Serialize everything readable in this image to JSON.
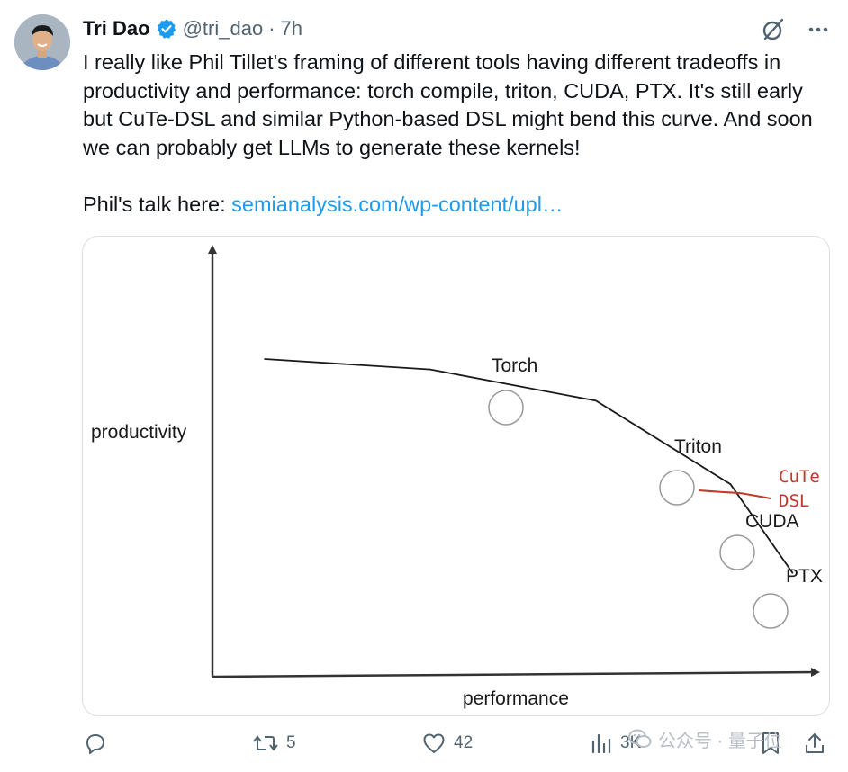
{
  "author": {
    "name": "Tri Dao",
    "handle": "@tri_dao",
    "separator": "·",
    "time": "7h"
  },
  "tweet": {
    "paragraph1": "I really like Phil Tillet's framing of different tools having different tradeoffs in productivity and performance: torch compile, triton, CUDA, PTX. It's still early but CuTe-DSL and similar Python-based DSL might bend this curve. And soon we can probably get LLMs to generate these kernels!",
    "link_prefix": "Phil's talk here: ",
    "link_text": "semianalysis.com/wp-content/upl…"
  },
  "chart_data": {
    "type": "line",
    "xlabel": "performance",
    "ylabel": "productivity",
    "x": [
      0,
      1.6,
      3.2,
      4.5,
      5.1
    ],
    "series": [
      {
        "values": [
          5.0,
          4.8,
          4.2,
          2.6,
          0.9
        ]
      }
    ],
    "annotations": [
      {
        "label": "Torch",
        "x": 2.7,
        "y": 4.35
      },
      {
        "label": "Triton",
        "x": 4.2,
        "y": 2.65
      },
      {
        "label": "CUDA",
        "x": 4.7,
        "y": 1.95
      },
      {
        "label": "PTX",
        "x": 5.0,
        "y": 1.15
      }
    ],
    "branch": {
      "label_line1": "CuTe",
      "label_line2": "DSL",
      "color": "#c0392b"
    },
    "axis_color": "#333333",
    "curve_color": "#1a1a1a"
  },
  "actions": {
    "reply_count": "",
    "retweet_count": "5",
    "like_count": "42",
    "views_count": "3K"
  },
  "watermark": {
    "text": "公众号 · 量子位"
  },
  "colors": {
    "link": "#1d9bf0",
    "verified": "#1d9bf0",
    "muted": "#536471"
  }
}
